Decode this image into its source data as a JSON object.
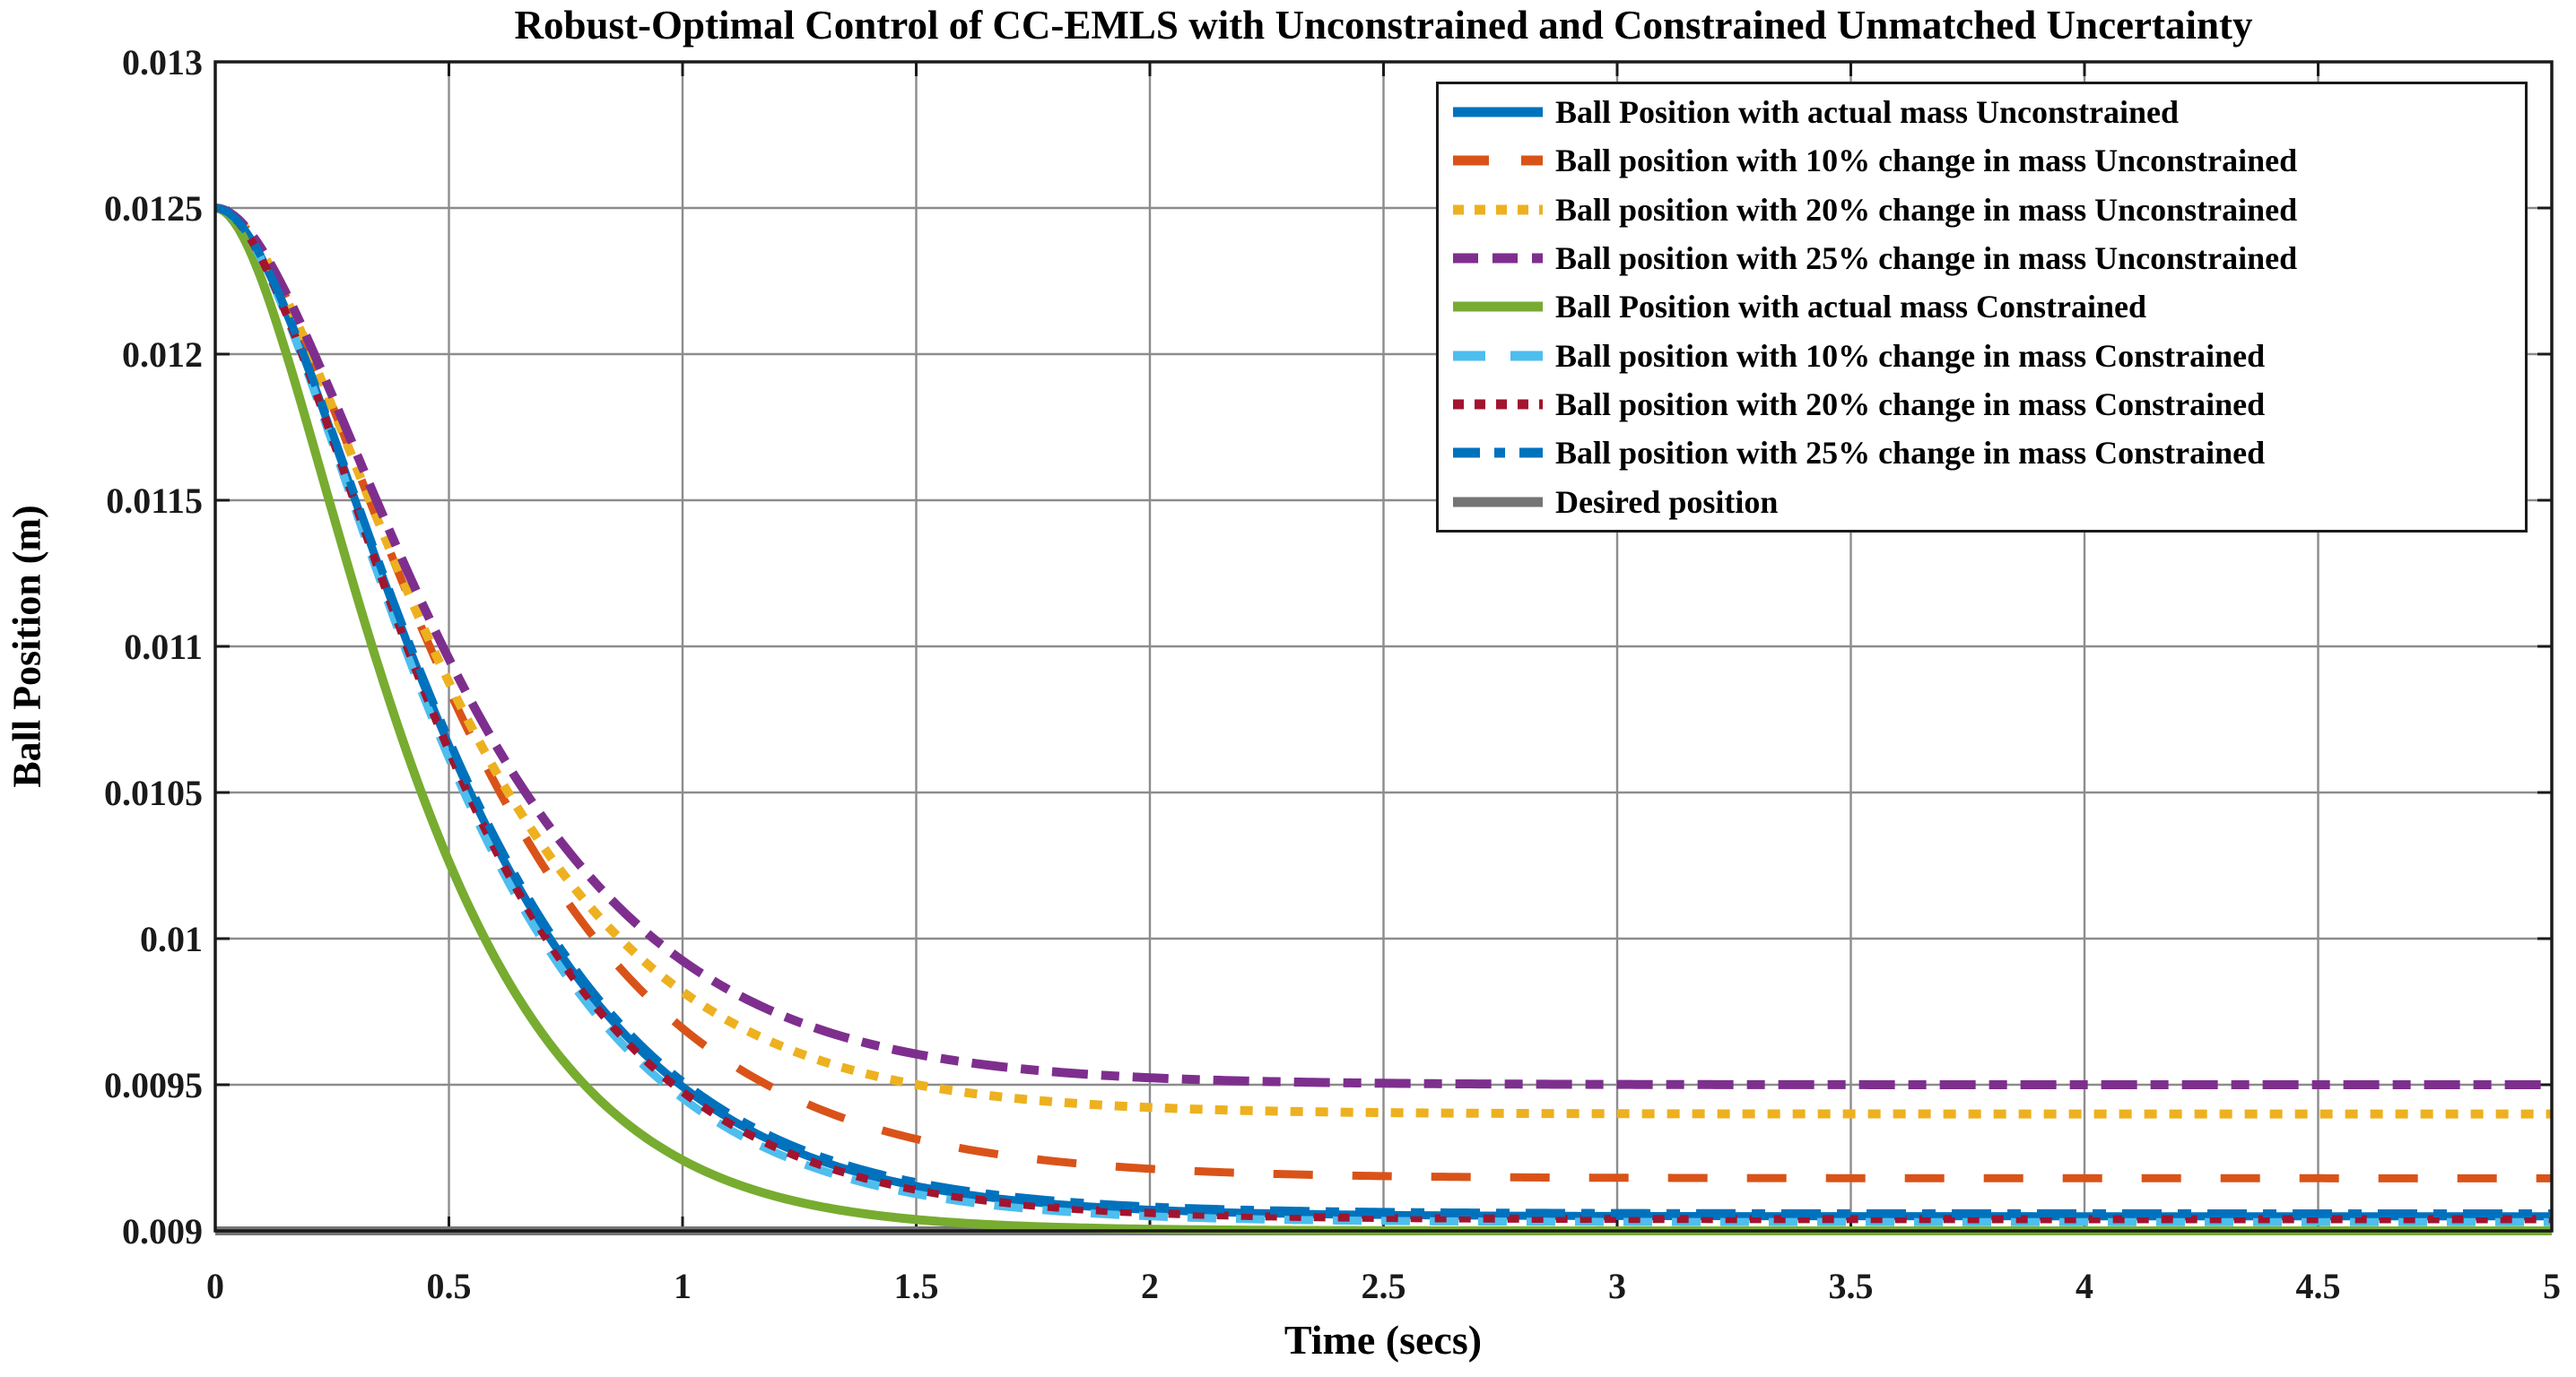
{
  "title": "Robust-Optimal Control of CC-EMLS with Unconstrained and Constrained Unmatched Uncertainty",
  "axes": {
    "xlabel": "Time (secs)",
    "ylabel": "Ball Position (m)",
    "xtick_labels": [
      "0",
      "0.5",
      "1",
      "1.5",
      "2",
      "2.5",
      "3",
      "3.5",
      "4",
      "4.5",
      "5"
    ],
    "ytick_labels": [
      "0.013",
      "0.0125",
      "0.012",
      "0.0115",
      "0.011",
      "0.0105",
      "0.01",
      "0.0095",
      "0.009"
    ]
  },
  "style_colors": {
    "axis": "#1a1a1a",
    "grid": "#8c8c8c",
    "background": "#ffffff"
  },
  "chart_data": {
    "type": "line",
    "title": "Robust-Optimal Control of CC-EMLS with Unconstrained and Constrained Unmatched Uncertainty",
    "xlabel": "Time (secs)",
    "ylabel": "Ball Position (m)",
    "xlim": [
      0,
      5
    ],
    "ylim": [
      0.009,
      0.013
    ],
    "xticks": [
      0,
      0.5,
      1,
      1.5,
      2,
      2.5,
      3,
      3.5,
      4,
      4.5,
      5
    ],
    "yticks": [
      0.013,
      0.0125,
      0.012,
      0.0115,
      0.011,
      0.0105,
      0.01,
      0.0095,
      0.009
    ],
    "grid": true,
    "legend_position": "top-right",
    "response_model": "y(t) = y_final + (y_start - y_final) * (1 + t/tau) * exp(-t/tau)",
    "t_samples": [
      0,
      0.5,
      1,
      1.5,
      2,
      2.5,
      3,
      3.5,
      4,
      4.5,
      5
    ],
    "draw_order": [
      8,
      0,
      1,
      2,
      3,
      4,
      5,
      6,
      7
    ],
    "series": [
      {
        "id": "u-actual",
        "name": "Ball Position with actual mass Unconstrained",
        "color": "#0072BD",
        "line_style": "solid",
        "width": 9,
        "dash": "",
        "legend_dash": "",
        "y_start": 0.0125,
        "y_final": 0.00905,
        "tau": 0.28,
        "y_samples": [
          0.0125,
          0.0106613,
          0.0094936,
          0.0091535,
          0.0090722,
          0.0090545,
          0.0090509,
          0.0090502,
          0.00905,
          0.00905,
          0.00905
        ]
      },
      {
        "id": "u-10",
        "name": "Ball position with 10% change in mass Unconstrained",
        "color": "#D95319",
        "line_style": "dashed",
        "width": 9,
        "dash": "44,44",
        "legend_dash": "40,36",
        "y_start": 0.0125,
        "y_final": 0.00918,
        "tau": 0.3,
        "y_samples": [
          0.0125,
          0.0108522,
          0.0096932,
          0.0093142,
          0.0092124,
          0.0091874,
          0.0091817,
          0.0091804,
          0.0091801,
          0.00918,
          0.00918
        ]
      },
      {
        "id": "u-20",
        "name": "Ball position with 20% change in mass Unconstrained",
        "color": "#EDB120",
        "line_style": "dotted",
        "width": 10,
        "dash": "14,14",
        "legend_dash": "12,12",
        "y_start": 0.0125,
        "y_final": 0.0094,
        "tau": 0.285,
        "y_samples": [
          0.0125,
          0.0108776,
          0.0098184,
          0.0095006,
          0.0094223,
          0.0094047,
          0.009401,
          0.0094002,
          0.0094,
          0.0094,
          0.0094
        ]
      },
      {
        "id": "u-25",
        "name": "Ball position with 25% change in mass Unconstrained",
        "color": "#7E2F8E",
        "line_style": "dash-dot",
        "width": 10,
        "dash": "40,15,20,15",
        "legend_dash": "28,16",
        "y_start": 0.0125,
        "y_final": 0.0095,
        "tau": 0.29,
        "y_samples": [
          0.0125,
          0.0109572,
          0.0099245,
          0.009605,
          0.0095239,
          0.0095052,
          0.0095011,
          0.0095002,
          0.0095,
          0.0095,
          0.0095
        ]
      },
      {
        "id": "c-actual",
        "name": "Ball Position with actual mass Constrained",
        "color": "#77AC30",
        "line_style": "solid",
        "width": 10,
        "dash": "",
        "legend_dash": "",
        "y_start": 0.0125,
        "y_final": 0.009,
        "tau": 0.23,
        "y_samples": [
          0.0125,
          0.0102632,
          0.0092423,
          0.0090386,
          0.0090057,
          0.0090008,
          0.0090001,
          0.009,
          0.009,
          0.009,
          0.009
        ]
      },
      {
        "id": "c-10",
        "name": "Ball position with 10% change in mass Constrained",
        "color": "#4DBEEE",
        "line_style": "dashed",
        "width": 9,
        "dash": "32,22",
        "legend_dash": "36,28",
        "y_start": 0.0125,
        "y_final": 0.00903,
        "tau": 0.275,
        "y_samples": [
          0.0125,
          0.0106181,
          0.0094546,
          0.0091257,
          0.0090499,
          0.0090339,
          0.0090308,
          0.0090301,
          0.00903,
          0.00903,
          0.00903
        ]
      },
      {
        "id": "c-20",
        "name": "Ball position with 20% change in mass Constrained",
        "color": "#A2142F",
        "line_style": "dotted",
        "width": 9,
        "dash": "13,14",
        "legend_dash": "12,12",
        "y_start": 0.0125,
        "y_final": 0.00904,
        "tau": 0.278,
        "y_samples": [
          0.0125,
          0.010643,
          0.0094762,
          0.0091403,
          0.0090613,
          0.0090443,
          0.0090408,
          0.0090402,
          0.00904,
          0.00904,
          0.00904
        ]
      },
      {
        "id": "c-25",
        "name": "Ball position with 25% change in mass Constrained",
        "color": "#0072BD",
        "line_style": "dash-dot",
        "width": 9,
        "dash": "44,18,15,18",
        "legend_dash": "30,16,12,16",
        "y_start": 0.0125,
        "y_final": 0.00906,
        "tau": 0.282,
        "y_samples": [
          0.0125,
          0.0106799,
          0.0095111,
          0.0091663,
          0.0090832,
          0.0090648,
          0.009061,
          0.0090602,
          0.00906,
          0.00906,
          0.00906
        ]
      },
      {
        "id": "desired",
        "name": "Desired position",
        "color": "#757575",
        "line_style": "solid",
        "width": 10,
        "dash": "",
        "legend_dash": "",
        "y_start": 0.009,
        "y_final": 0.009,
        "tau": null,
        "y_samples": [
          0.009,
          0.009,
          0.009,
          0.009,
          0.009,
          0.009,
          0.009,
          0.009,
          0.009,
          0.009,
          0.009
        ]
      }
    ]
  }
}
